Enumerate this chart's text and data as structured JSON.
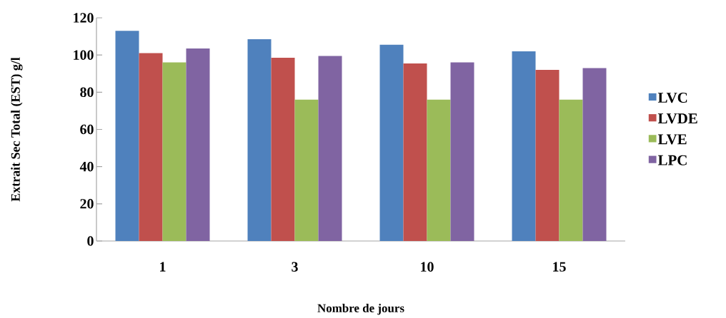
{
  "chart_data": {
    "type": "bar",
    "xlabel": "Nombre de jours",
    "ylabel": "Extrait Sec Total (EST) g/l",
    "categories": [
      "1",
      "3",
      "10",
      "15"
    ],
    "series": [
      {
        "name": "LVC",
        "color": "#4f81bd",
        "values": [
          113,
          108.5,
          105.5,
          102
        ]
      },
      {
        "name": "LVDE",
        "color": "#c0504d",
        "values": [
          101,
          98.5,
          95.5,
          92
        ]
      },
      {
        "name": "LVE",
        "color": "#9bbb59",
        "values": [
          96,
          76,
          76,
          76
        ]
      },
      {
        "name": "LPC",
        "color": "#8064a2",
        "values": [
          103.5,
          99.5,
          96,
          93
        ]
      }
    ],
    "ylim": [
      0,
      120
    ],
    "yticks": [
      0,
      20,
      40,
      60,
      80,
      100,
      120
    ],
    "grid": false,
    "legend": "right"
  }
}
